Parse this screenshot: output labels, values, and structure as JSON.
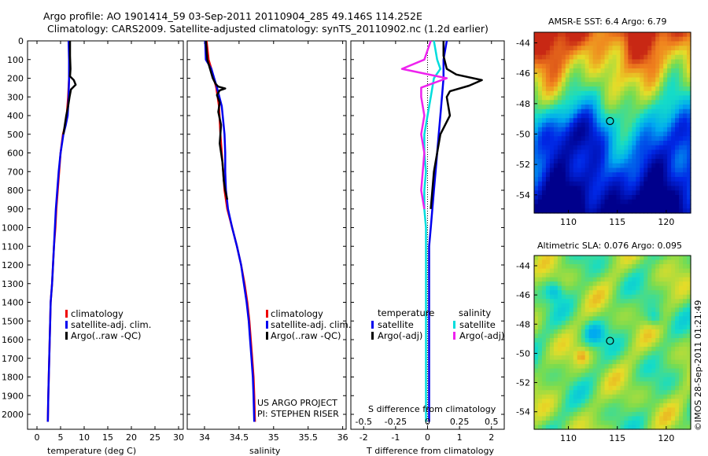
{
  "header": {
    "title_line1": "Argo profile: AO 1901414_59 03-Sep-2011 20110904_285 49.146S 114.252E",
    "title_line2": "Climatology: CARS2009. Satellite-adjusted climatology: synTS_20110902.nc (1.2d earlier)"
  },
  "credit": {
    "project_line1": "US ARGO PROJECT",
    "project_line2": "PI: STEPHEN RISER",
    "imos_stamp": "©IMOS 28-Sep-2011 01:21:49"
  },
  "colors": {
    "climatology": "#ee0000",
    "satellite": "#0000ee",
    "argo": "#000000",
    "sal_satellite": "#00dddd",
    "sal_argo": "#ee22ee"
  },
  "chart_data": [
    {
      "type": "line",
      "id": "temperature",
      "xlabel": "temperature (deg C)",
      "xlim": [
        -2,
        31
      ],
      "xticks": [
        0,
        5,
        10,
        15,
        20,
        25,
        30
      ],
      "ylim": [
        0,
        2080
      ],
      "ylabel_ticks": [
        0,
        100,
        200,
        300,
        400,
        500,
        600,
        700,
        800,
        900,
        1000,
        1100,
        1200,
        1300,
        1400,
        1500,
        1600,
        1700,
        1800,
        1900,
        2000
      ],
      "y_reversed": true,
      "legend": [
        "climatology",
        "satellite-adj. clim.",
        "Argo(..raw -QC)"
      ],
      "series": [
        {
          "name": "climatology",
          "color": "#ee0000",
          "x": [
            6.9,
            6.9,
            6.8,
            6.6,
            6.3,
            6.0,
            5.5,
            5.0,
            4.7,
            4.4,
            4.1,
            3.9,
            3.6,
            3.4,
            3.2,
            2.9,
            2.8,
            2.7,
            2.6,
            2.5,
            2.4,
            2.3
          ],
          "y": [
            0,
            100,
            200,
            300,
            400,
            450,
            500,
            600,
            700,
            800,
            900,
            1000,
            1100,
            1200,
            1300,
            1400,
            1500,
            1600,
            1700,
            1800,
            1900,
            2040
          ]
        },
        {
          "name": "satellite-adj. clim.",
          "color": "#0000ee",
          "x": [
            6.7,
            6.8,
            6.8,
            6.7,
            6.5,
            6.1,
            5.6,
            5.0,
            4.6,
            4.3,
            4.0,
            3.8,
            3.6,
            3.4,
            3.2,
            2.9,
            2.8,
            2.7,
            2.6,
            2.5,
            2.4,
            2.3
          ],
          "y": [
            0,
            100,
            200,
            300,
            400,
            450,
            500,
            600,
            700,
            800,
            900,
            1000,
            1100,
            1200,
            1300,
            1400,
            1500,
            1600,
            1700,
            1800,
            1900,
            2040
          ]
        },
        {
          "name": "Argo(..raw -QC)",
          "color": "#000000",
          "x": [
            7.0,
            7.0,
            7.1,
            7.0,
            7.8,
            8.2,
            7.2,
            6.9,
            6.6,
            6.2,
            5.6
          ],
          "y": [
            0,
            80,
            150,
            190,
            210,
            235,
            260,
            300,
            350,
            400,
            500
          ]
        }
      ]
    },
    {
      "type": "line",
      "id": "salinity",
      "xlabel": "salinity",
      "xlim": [
        33.75,
        36.05
      ],
      "xticks": [
        34,
        34.5,
        35,
        35.5,
        36
      ],
      "ylim": [
        0,
        2080
      ],
      "y_reversed": true,
      "legend": [
        "climatology",
        "satellite-adj. clim.",
        "Argo(..raw -QC)"
      ],
      "series": [
        {
          "name": "climatology",
          "color": "#ee0000",
          "x": [
            34.03,
            34.06,
            34.1,
            34.17,
            34.21,
            34.23,
            34.25,
            34.27,
            34.29,
            34.33,
            34.4,
            34.47,
            34.53,
            34.58,
            34.62,
            34.65,
            34.67,
            34.69,
            34.71,
            34.72,
            34.73
          ],
          "y": [
            0,
            100,
            150,
            250,
            350,
            500,
            600,
            700,
            800,
            900,
            1000,
            1100,
            1200,
            1300,
            1400,
            1500,
            1600,
            1700,
            1800,
            1900,
            2040
          ]
        },
        {
          "name": "satellite-adj. clim.",
          "color": "#0000ee",
          "x": [
            34.01,
            34.02,
            34.1,
            34.18,
            34.25,
            34.29,
            34.3,
            34.3,
            34.31,
            34.34,
            34.4,
            34.47,
            34.53,
            34.57,
            34.61,
            34.64,
            34.66,
            34.68,
            34.7,
            34.71,
            34.72
          ],
          "y": [
            0,
            100,
            150,
            250,
            350,
            500,
            600,
            700,
            800,
            900,
            1000,
            1100,
            1200,
            1300,
            1400,
            1500,
            1600,
            1700,
            1800,
            1900,
            2040
          ]
        },
        {
          "name": "Argo(..raw -QC)",
          "color": "#000000",
          "x": [
            34.02,
            34.04,
            34.08,
            34.12,
            34.16,
            34.2,
            34.3,
            34.22,
            34.18,
            34.22,
            34.2,
            34.24,
            34.22,
            34.26,
            34.28,
            34.3,
            34.33
          ],
          "y": [
            0,
            100,
            150,
            200,
            230,
            245,
            255,
            265,
            290,
            330,
            380,
            450,
            550,
            650,
            750,
            800,
            850
          ]
        }
      ]
    },
    {
      "type": "line",
      "id": "difference",
      "xlabel": "T difference from climatology",
      "xlabel_top": "S difference from climatology",
      "xlim": [
        -2.4,
        2.4
      ],
      "xticks": [
        -2,
        -1,
        0,
        1,
        2
      ],
      "top_ticks": [
        "-0.5",
        "-0.25",
        "0",
        "0.25",
        "0.5"
      ],
      "ylim": [
        0,
        2080
      ],
      "y_reversed": true,
      "legend_groups": [
        "temperature",
        "salinity"
      ],
      "legend": [
        "satellite",
        "Argo(-adj)",
        "satellite",
        "Argo(-adj)"
      ],
      "series": [
        {
          "name": "temperature satellite",
          "color": "#0000ee",
          "x": [
            0.6,
            0.5,
            0.5,
            0.45,
            0.4,
            0.35,
            0.3,
            0.25,
            0.2,
            0.15,
            0.1,
            0.05,
            0.05,
            0.05,
            0.05,
            0.05,
            0.05,
            0.05,
            0.05,
            0.05,
            0.05
          ],
          "y": [
            0,
            100,
            200,
            300,
            400,
            500,
            600,
            700,
            800,
            900,
            1000,
            1100,
            1200,
            1300,
            1400,
            1500,
            1600,
            1700,
            1800,
            1900,
            2040
          ]
        },
        {
          "name": "temperature Argo(-adj)",
          "color": "#000000",
          "x": [
            0.5,
            0.5,
            0.6,
            0.9,
            1.7,
            1.3,
            0.7,
            0.6,
            0.7,
            0.4,
            0.2,
            0.1
          ],
          "y": [
            0,
            80,
            150,
            180,
            210,
            240,
            270,
            300,
            400,
            500,
            700,
            900
          ]
        },
        {
          "name": "salinity satellite",
          "color": "#00dddd",
          "x": [
            0.2,
            0.3,
            0.4,
            0.2,
            0.1,
            0.0,
            -0.1,
            -0.1,
            -0.05,
            -0.1,
            -0.1,
            -0.05,
            -0.05,
            -0.05,
            -0.05,
            -0.05,
            -0.05,
            -0.05,
            -0.05,
            -0.05
          ],
          "y": [
            0,
            100,
            150,
            200,
            300,
            400,
            500,
            600,
            700,
            800,
            900,
            1000,
            1100,
            1200,
            1300,
            1400,
            1500,
            1600,
            1800,
            2040
          ]
        },
        {
          "name": "salinity Argo(-adj)",
          "color": "#ee22ee",
          "x": [
            0.1,
            -0.1,
            -0.8,
            0.6,
            -0.2,
            -0.2,
            -0.1,
            -0.2,
            -0.1,
            -0.15,
            -0.2,
            -0.1
          ],
          "y": [
            0,
            100,
            150,
            200,
            250,
            300,
            400,
            500,
            600,
            700,
            800,
            900
          ]
        }
      ]
    },
    {
      "type": "heatmap",
      "id": "sst_map",
      "title": "AMSR-E SST: 6.4 Argo: 6.79",
      "xticks": [
        110,
        115,
        120
      ],
      "yticks": [
        -44,
        -46,
        -48,
        -50,
        -52,
        -54
      ],
      "argo_position": [
        114.252,
        -49.146
      ]
    },
    {
      "type": "heatmap",
      "id": "sla_map",
      "title": "Altimetric SLA: 0.076 Argo: 0.095",
      "xticks": [
        110,
        115,
        120
      ],
      "yticks": [
        -44,
        -46,
        -48,
        -50,
        -52,
        -54
      ],
      "argo_position": [
        114.252,
        -49.146
      ]
    }
  ]
}
